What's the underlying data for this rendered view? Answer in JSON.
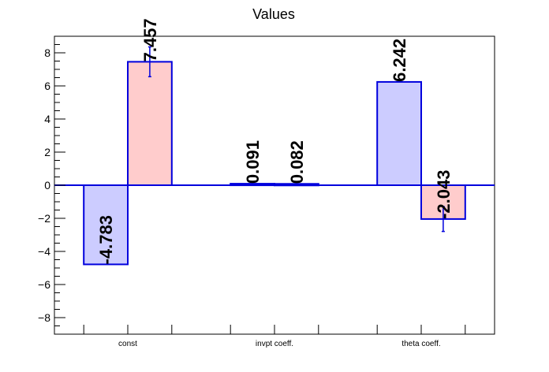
{
  "chart_data": {
    "type": "bar",
    "title": "Values",
    "xlabel": "",
    "ylabel": "",
    "categories": [
      "const",
      "invpt coeff.",
      "theta coeff."
    ],
    "ylim": [
      -9,
      9
    ],
    "y_ticks": [
      -8,
      -6,
      -4,
      -2,
      0,
      2,
      4,
      6,
      8
    ],
    "grid": false,
    "series": [
      {
        "values": [
          -4.783,
          0.091,
          6.242
        ],
        "labels": [
          "-4.783",
          "0.091",
          "6.242"
        ],
        "errors": [
          0,
          0,
          0
        ],
        "fill": "#ccccff",
        "stroke": "#0000dd"
      },
      {
        "values": [
          7.457,
          0.082,
          -2.043
        ],
        "labels": [
          "7.457",
          "0.082",
          "-2.043"
        ],
        "errors": [
          0.9,
          0,
          0.75
        ],
        "fill": "#ffcccc",
        "stroke": "#0000dd"
      }
    ]
  }
}
